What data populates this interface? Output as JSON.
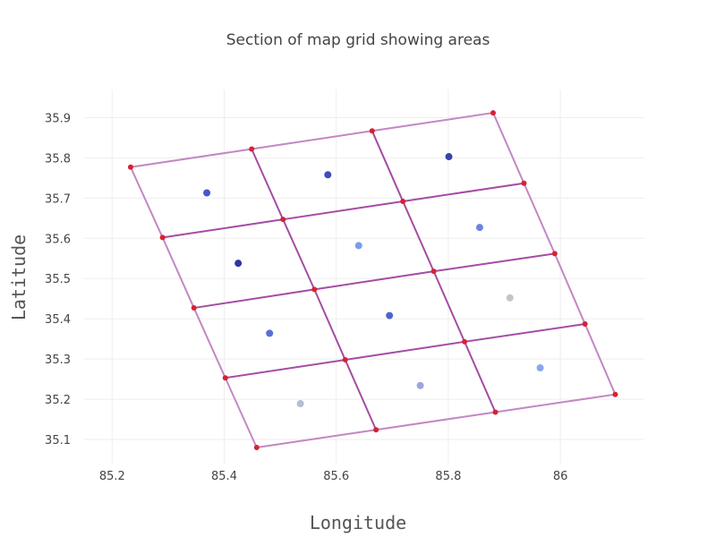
{
  "chart_data": {
    "type": "scatter",
    "title": "Section of map grid showing areas",
    "xlabel": "Longitude",
    "ylabel": "Latitude",
    "xlim": [
      85.15,
      86.15
    ],
    "ylim": [
      35.04,
      35.97
    ],
    "x_ticks": [
      85.2,
      85.4,
      85.6,
      85.8,
      86
    ],
    "x_tick_labels": [
      "85.2",
      "85.4",
      "85.6",
      "85.8",
      "86"
    ],
    "y_ticks": [
      35.1,
      35.2,
      35.3,
      35.4,
      35.5,
      35.6,
      35.7,
      35.8,
      35.9
    ],
    "y_tick_labels": [
      "35.1",
      "35.2",
      "35.3",
      "35.4",
      "35.5",
      "35.6",
      "35.7",
      "35.8",
      "35.9"
    ],
    "grid": true,
    "colors": {
      "outer_border": "#c387c3",
      "inner_grid": "#a54ca5",
      "vertex": "#d62232"
    },
    "grid_vertices": [
      [
        [
          85.233,
          35.777
        ],
        [
          85.29,
          35.602
        ],
        [
          85.346,
          35.427
        ],
        [
          85.402,
          35.253
        ],
        [
          85.458,
          35.08
        ]
      ],
      [
        [
          85.449,
          35.822
        ],
        [
          85.505,
          35.647
        ],
        [
          85.561,
          35.473
        ],
        [
          85.616,
          35.298
        ],
        [
          85.671,
          35.124
        ]
      ],
      [
        [
          85.664,
          35.867
        ],
        [
          85.719,
          35.692
        ],
        [
          85.774,
          35.518
        ],
        [
          85.829,
          35.343
        ],
        [
          85.884,
          35.168
        ]
      ],
      [
        [
          85.88,
          35.912
        ],
        [
          85.935,
          35.737
        ],
        [
          85.99,
          35.562
        ],
        [
          86.044,
          35.387
        ],
        [
          86.098,
          35.212
        ]
      ]
    ],
    "area_points": [
      {
        "x": 85.369,
        "y": 35.713,
        "color": "#4756c9"
      },
      {
        "x": 85.585,
        "y": 35.758,
        "color": "#3e4db9"
      },
      {
        "x": 85.801,
        "y": 35.803,
        "color": "#3743ab"
      },
      {
        "x": 85.425,
        "y": 35.538,
        "color": "#2f37a1"
      },
      {
        "x": 85.64,
        "y": 35.582,
        "color": "#7b9cec"
      },
      {
        "x": 85.856,
        "y": 35.627,
        "color": "#6b84dd"
      },
      {
        "x": 85.481,
        "y": 35.364,
        "color": "#5a6fd5"
      },
      {
        "x": 85.695,
        "y": 35.408,
        "color": "#4f63cc"
      },
      {
        "x": 85.91,
        "y": 35.452,
        "color": "#c3c3c9"
      },
      {
        "x": 85.536,
        "y": 35.189,
        "color": "#b6bdd4"
      },
      {
        "x": 85.75,
        "y": 35.234,
        "color": "#9aa6dc"
      },
      {
        "x": 85.964,
        "y": 35.278,
        "color": "#88a7ee"
      }
    ]
  }
}
